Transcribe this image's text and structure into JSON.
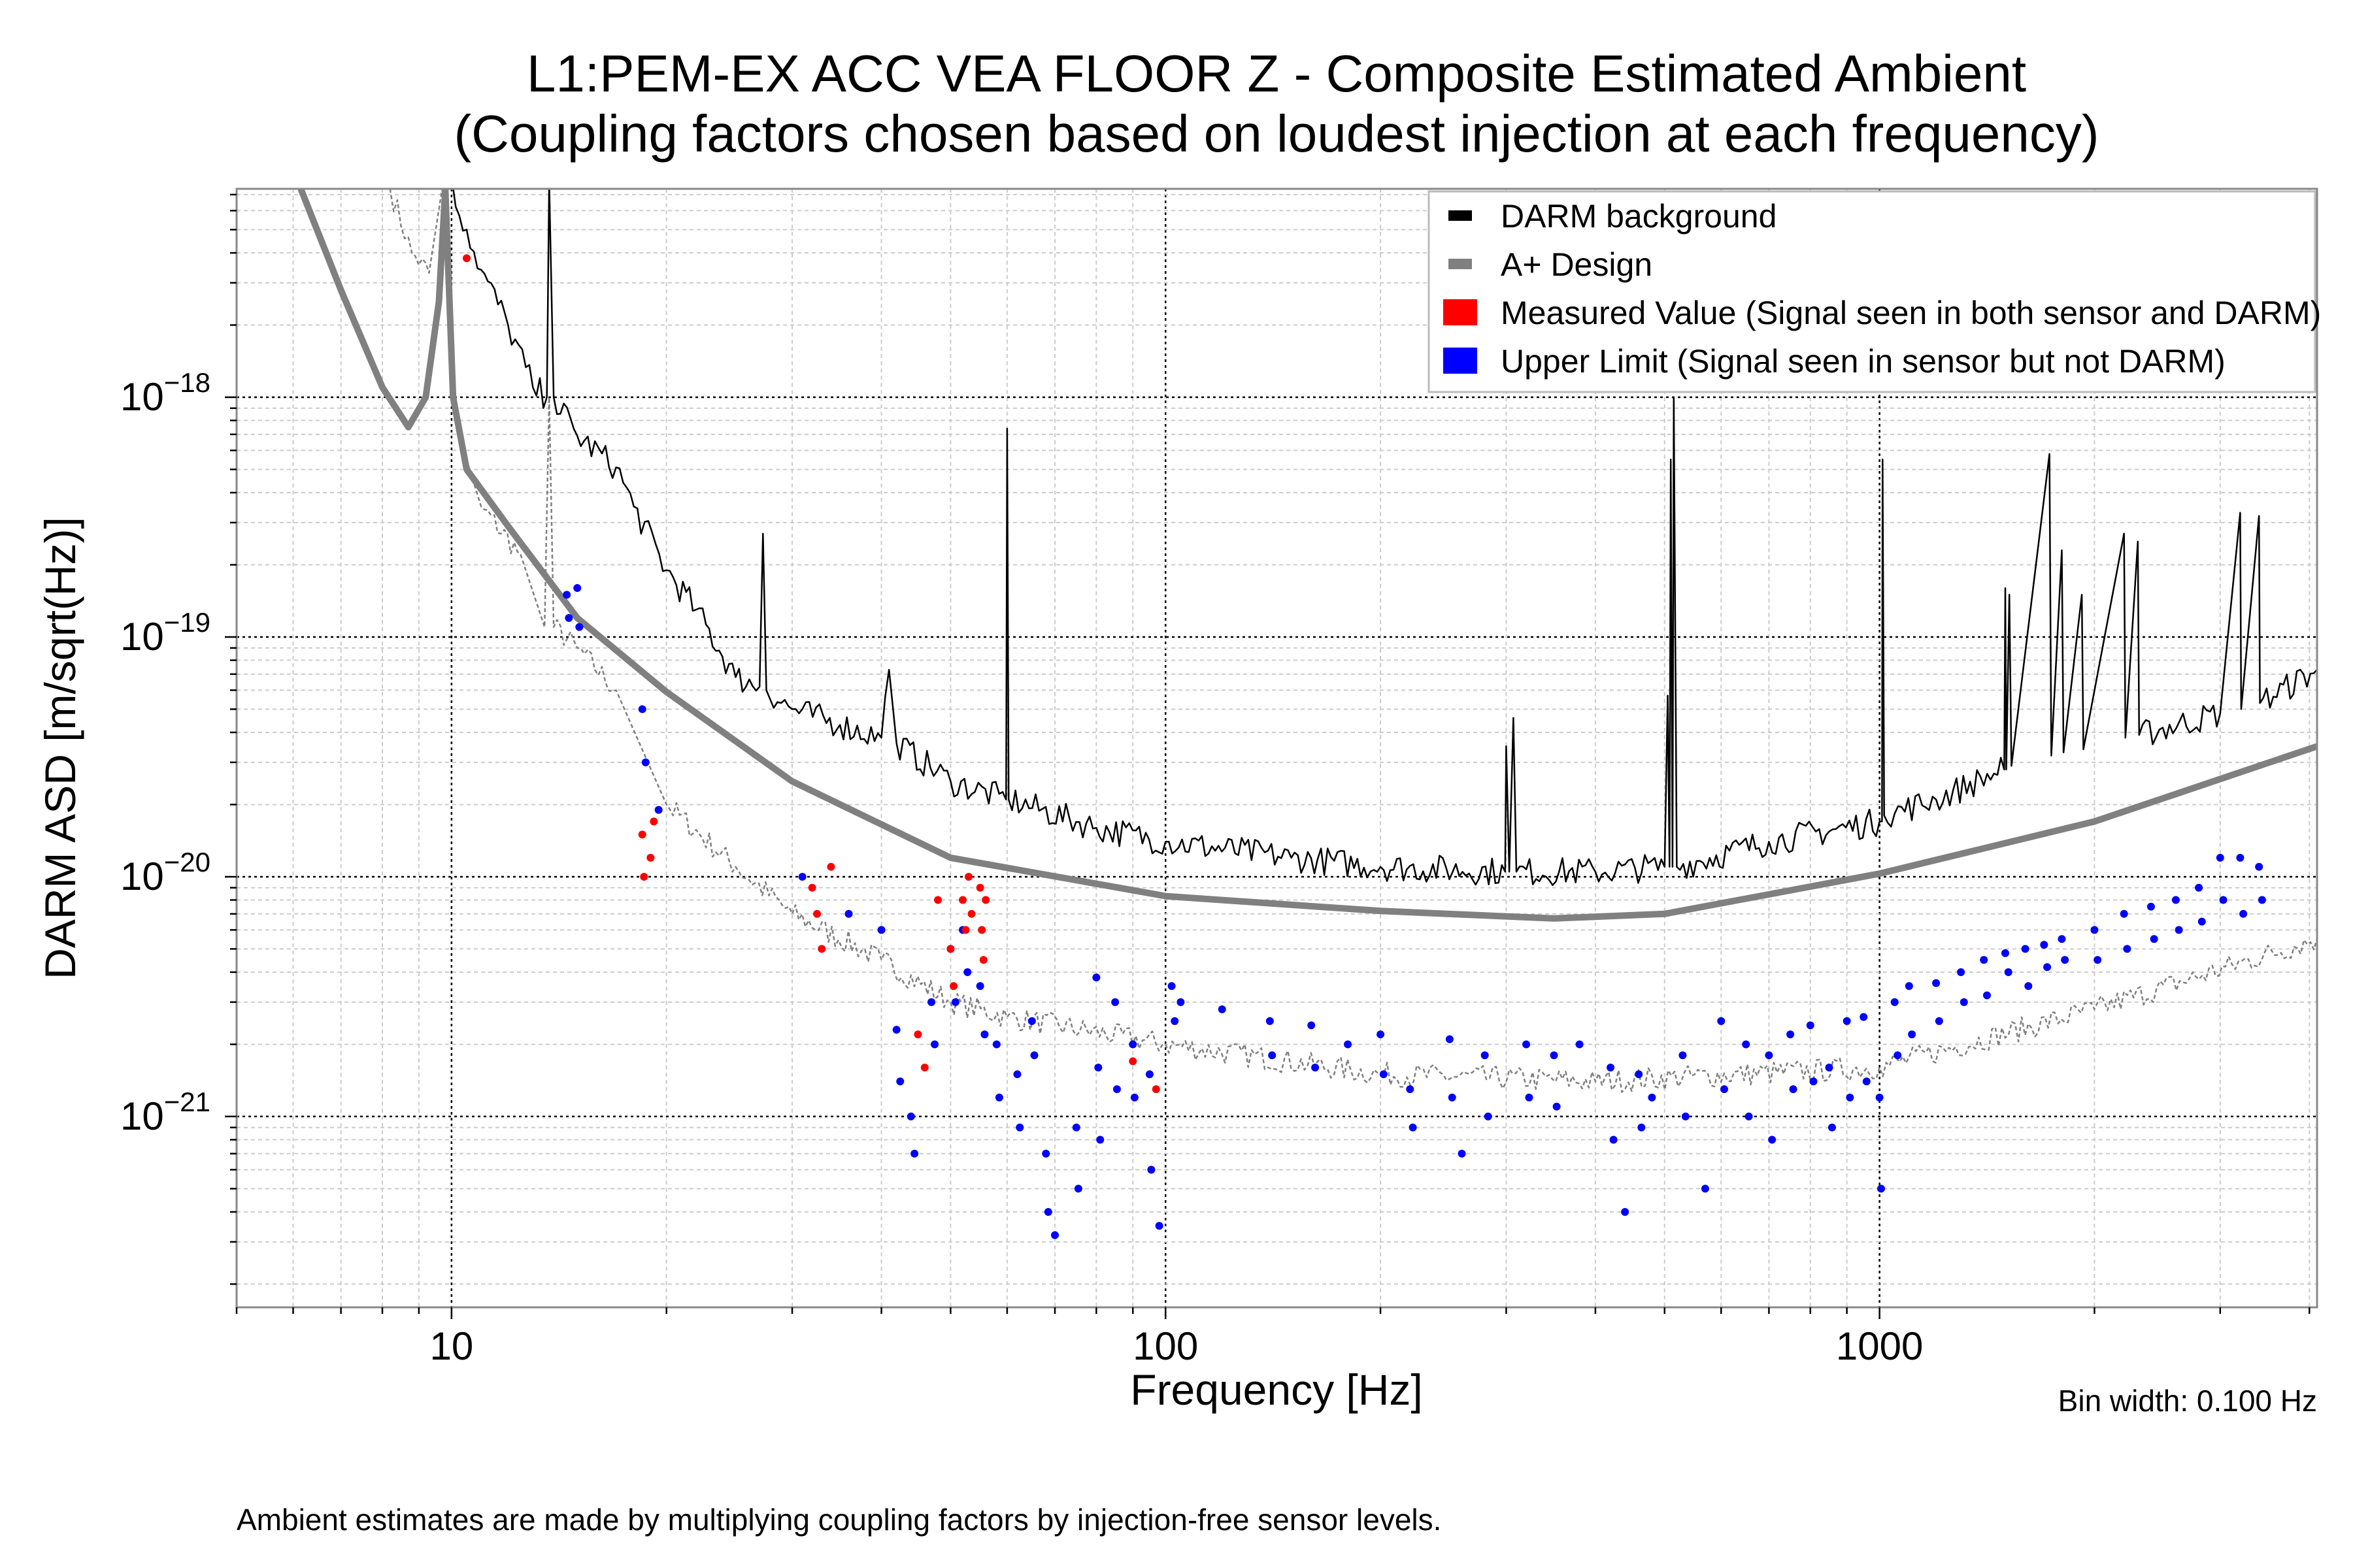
{
  "chart_data": {
    "type": "line",
    "title_line1": "L1:PEM-EX ACC VEA FLOOR Z - Composite Estimated Ambient",
    "title_line2": "(Coupling factors chosen based on loudest injection at each frequency)",
    "xlabel": "Frequency [Hz]",
    "ylabel": "DARM ASD [m/sqrt(Hz)]",
    "x_scale": "log",
    "y_scale": "log",
    "xlim": [
      5,
      4100
    ],
    "ylim": [
      1.6e-22,
      7.4e-18
    ],
    "x_ticks": [
      {
        "value": 10,
        "label": "10"
      },
      {
        "value": 100,
        "label": "100"
      },
      {
        "value": 1000,
        "label": "1000"
      }
    ],
    "y_ticks": [
      {
        "value": 1e-18,
        "base": "10",
        "exp": "−18"
      },
      {
        "value": 1e-19,
        "base": "10",
        "exp": "−19"
      },
      {
        "value": 1e-20,
        "base": "10",
        "exp": "−20"
      },
      {
        "value": 1e-21,
        "base": "10",
        "exp": "−21"
      }
    ],
    "grid": true,
    "legend_position": "top-right",
    "legend": [
      {
        "label": "DARM background",
        "color": "#000000"
      },
      {
        "label": "A+ Design",
        "color": "#808080"
      },
      {
        "label": "Measured Value (Signal seen in both sensor and DARM)",
        "color": "#ff0000"
      },
      {
        "label": "Upper Limit (Signal seen in sensor but not DARM)",
        "color": "#0000ff"
      }
    ],
    "bin_width_note": "Bin width: 0.100 Hz",
    "footnote": "Ambient estimates are made by multiplying coupling factors by injection-free sensor levels.",
    "series": [
      {
        "name": "DARM background",
        "color": "#000000",
        "style": "thin-line",
        "points": [
          [
            9.9,
            8e-18
          ],
          [
            10.5,
            5e-18
          ],
          [
            11,
            3.4e-18
          ],
          [
            12,
            2e-18
          ],
          [
            13,
            1.1e-18
          ],
          [
            13.6,
            1e-18
          ],
          [
            13.7,
            8e-18
          ],
          [
            13.9,
            1e-18
          ],
          [
            15,
            6.9e-19
          ],
          [
            17,
            5.1e-19
          ],
          [
            18,
            3.5e-19
          ],
          [
            20,
            1.9e-19
          ],
          [
            22,
            1.3e-19
          ],
          [
            25,
            6.8e-20
          ],
          [
            27,
            6.2e-20
          ],
          [
            27.3,
            2.7e-19
          ],
          [
            27.6,
            6e-20
          ],
          [
            30,
            5e-20
          ],
          [
            35,
            4.3e-20
          ],
          [
            40,
            3.8e-20
          ],
          [
            41,
            7.3e-20
          ],
          [
            42,
            3.6e-20
          ],
          [
            50,
            2.5e-20
          ],
          [
            59.8,
            2.1e-20
          ],
          [
            60,
            7.4e-19
          ],
          [
            60.3,
            2.1e-20
          ],
          [
            80,
            1.6e-20
          ],
          [
            100,
            1.4e-20
          ],
          [
            150,
            1.2e-20
          ],
          [
            200,
            1.1e-20
          ],
          [
            299,
            1.05e-20
          ],
          [
            300,
            3.5e-20
          ],
          [
            303,
            1.05e-20
          ],
          [
            307,
            4.6e-20
          ],
          [
            310,
            1.05e-20
          ],
          [
            400,
            1.05e-20
          ],
          [
            500,
            1.1e-20
          ],
          [
            505,
            5.7e-20
          ],
          [
            508,
            1.1e-20
          ],
          [
            510,
            5.5e-19
          ],
          [
            513,
            1.1e-20
          ],
          [
            515,
            1e-18
          ],
          [
            520,
            1.1e-20
          ],
          [
            700,
            1.4e-20
          ],
          [
            1000,
            1.7e-20
          ],
          [
            1008,
            1.7e-20
          ],
          [
            1010,
            5.5e-19
          ],
          [
            1015,
            1.8e-20
          ],
          [
            1200,
            2.1e-20
          ],
          [
            1495,
            2.8e-20
          ],
          [
            1500,
            1.6e-19
          ],
          [
            1505,
            2.8e-20
          ],
          [
            1520,
            1.5e-19
          ],
          [
            1530,
            2.9e-20
          ],
          [
            1730,
            5.8e-19
          ],
          [
            1740,
            3.2e-20
          ],
          [
            1800,
            2.3e-19
          ],
          [
            1810,
            3.3e-20
          ],
          [
            1920,
            1.5e-19
          ],
          [
            1930,
            3.4e-20
          ],
          [
            2200,
            2.7e-19
          ],
          [
            2210,
            3.8e-20
          ],
          [
            2300,
            2.5e-19
          ],
          [
            2310,
            3.9e-20
          ],
          [
            3000,
            4.8e-20
          ],
          [
            3200,
            3.3e-19
          ],
          [
            3210,
            5e-20
          ],
          [
            3400,
            3.2e-19
          ],
          [
            3410,
            5.3e-20
          ],
          [
            4100,
            7.3e-20
          ]
        ]
      },
      {
        "name": "A+ Design",
        "color": "#808080",
        "style": "thick-line",
        "points": [
          [
            6.15,
            7.4e-18
          ],
          [
            7,
            2.8e-18
          ],
          [
            8,
            1.1e-18
          ],
          [
            8.7,
            7.5e-19
          ],
          [
            9.2,
            1e-18
          ],
          [
            9.6,
            2.5e-18
          ],
          [
            9.8,
            7.4e-18
          ],
          [
            10.05,
            1e-18
          ],
          [
            10.5,
            5e-19
          ],
          [
            12,
            2.9e-19
          ],
          [
            15,
            1.2e-19
          ],
          [
            20,
            5.9e-20
          ],
          [
            30,
            2.5e-20
          ],
          [
            50,
            1.2e-20
          ],
          [
            100,
            8.3e-21
          ],
          [
            200,
            7.2e-21
          ],
          [
            350,
            6.7e-21
          ],
          [
            500,
            7e-21
          ],
          [
            1000,
            1.03e-20
          ],
          [
            2000,
            1.7e-20
          ],
          [
            4100,
            3.5e-20
          ]
        ]
      },
      {
        "color": "#808080",
        "style": "dashed-line",
        "points": [
          [
            8.2,
            7.4e-18
          ],
          [
            8.8,
            4e-18
          ],
          [
            9.3,
            3.3e-18
          ],
          [
            9.7,
            7.4e-18
          ],
          [
            10.1,
            8e-19
          ],
          [
            11,
            3.5e-19
          ],
          [
            12.5,
            2.2e-19
          ],
          [
            13.5,
            1.1e-19
          ],
          [
            13.7,
            1e-18
          ],
          [
            13.9,
            1.1e-19
          ],
          [
            15,
            9e-20
          ],
          [
            17,
            6e-20
          ],
          [
            20,
            2e-20
          ],
          [
            25,
            1.1e-20
          ],
          [
            30,
            7e-21
          ],
          [
            40,
            4.5e-21
          ],
          [
            50,
            3e-21
          ],
          [
            60,
            2.6e-21
          ],
          [
            100,
            2e-21
          ],
          [
            200,
            1.5e-21
          ],
          [
            400,
            1.4e-21
          ],
          [
            1000,
            1.6e-21
          ],
          [
            2000,
            2.8e-21
          ],
          [
            4100,
            5.5e-21
          ]
        ]
      }
    ],
    "measured_points": [
      [
        10.5,
        3.8e-18
      ],
      [
        18.5,
        1.5e-20
      ],
      [
        18.6,
        1e-20
      ],
      [
        19,
        1.2e-20
      ],
      [
        19.2,
        1.7e-20
      ],
      [
        32,
        9e-21
      ],
      [
        32.5,
        7e-21
      ],
      [
        33,
        5e-21
      ],
      [
        34,
        1.1e-20
      ],
      [
        45,
        2.2e-21
      ],
      [
        46,
        1.6e-21
      ],
      [
        48,
        8e-21
      ],
      [
        50,
        5e-21
      ],
      [
        50.5,
        3.5e-21
      ],
      [
        52,
        8e-21
      ],
      [
        52.5,
        6e-21
      ],
      [
        53,
        1e-20
      ],
      [
        53.5,
        7e-21
      ],
      [
        55,
        9e-21
      ],
      [
        55.3,
        6e-21
      ],
      [
        55.6,
        4.5e-21
      ],
      [
        56,
        8e-21
      ],
      [
        90,
        1.7e-21
      ],
      [
        97,
        1.3e-21
      ]
    ],
    "upper_limit_points": [
      [
        14.5,
        1.5e-19
      ],
      [
        14.6,
        1.2e-19
      ],
      [
        15,
        1.6e-19
      ],
      [
        15.1,
        1.1e-19
      ],
      [
        18.5,
        5e-20
      ],
      [
        18.7,
        3e-20
      ],
      [
        19.5,
        1.9e-20
      ],
      [
        31,
        1e-20
      ],
      [
        36,
        7e-21
      ],
      [
        40,
        6e-21
      ],
      [
        42,
        2.3e-21
      ],
      [
        42.5,
        1.4e-21
      ],
      [
        44,
        1e-21
      ],
      [
        44.5,
        7e-22
      ],
      [
        47,
        3e-21
      ],
      [
        47.5,
        2e-21
      ],
      [
        50,
        5e-21
      ],
      [
        50.8,
        3e-21
      ],
      [
        52,
        6e-21
      ],
      [
        52.8,
        4e-21
      ],
      [
        55,
        3.5e-21
      ],
      [
        55.8,
        2.2e-21
      ],
      [
        58,
        2e-21
      ],
      [
        58.5,
        1.2e-21
      ],
      [
        62,
        1.5e-21
      ],
      [
        62.5,
        9e-22
      ],
      [
        65,
        2.5e-21
      ],
      [
        65.5,
        1.8e-21
      ],
      [
        68,
        7e-22
      ],
      [
        68.5,
        4e-22
      ],
      [
        70,
        3.2e-22
      ],
      [
        75,
        9e-22
      ],
      [
        75.5,
        5e-22
      ],
      [
        80,
        3.8e-21
      ],
      [
        80.5,
        1.6e-21
      ],
      [
        81,
        8e-22
      ],
      [
        85,
        3e-21
      ],
      [
        85.5,
        1.3e-21
      ],
      [
        90,
        2e-21
      ],
      [
        90.5,
        1.2e-21
      ],
      [
        95,
        1.5e-21
      ],
      [
        95.5,
        6e-22
      ],
      [
        98,
        3.5e-22
      ],
      [
        102,
        3.5e-21
      ],
      [
        103,
        2.5e-21
      ],
      [
        105,
        3e-21
      ],
      [
        120,
        2.8e-21
      ],
      [
        140,
        2.5e-21
      ],
      [
        141,
        1.8e-21
      ],
      [
        160,
        2.4e-21
      ],
      [
        162,
        1.6e-21
      ],
      [
        180,
        2e-21
      ],
      [
        200,
        2.2e-21
      ],
      [
        202,
        1.5e-21
      ],
      [
        220,
        1.3e-21
      ],
      [
        222,
        9e-22
      ],
      [
        250,
        2.1e-21
      ],
      [
        252,
        1.2e-21
      ],
      [
        260,
        7e-22
      ],
      [
        280,
        1.8e-21
      ],
      [
        283,
        1e-21
      ],
      [
        320,
        2e-21
      ],
      [
        323,
        1.2e-21
      ],
      [
        350,
        1.8e-21
      ],
      [
        353,
        1.1e-21
      ],
      [
        380,
        2e-21
      ],
      [
        420,
        1.6e-21
      ],
      [
        424,
        8e-22
      ],
      [
        440,
        4e-22
      ],
      [
        460,
        1.5e-21
      ],
      [
        464,
        9e-22
      ],
      [
        480,
        1.2e-21
      ],
      [
        530,
        1.8e-21
      ],
      [
        535,
        1e-21
      ],
      [
        570,
        5e-22
      ],
      [
        600,
        2.5e-21
      ],
      [
        606,
        1.3e-21
      ],
      [
        650,
        2e-21
      ],
      [
        656,
        1e-21
      ],
      [
        700,
        1.8e-21
      ],
      [
        707,
        8e-22
      ],
      [
        750,
        2.2e-21
      ],
      [
        757,
        1.3e-21
      ],
      [
        800,
        2.4e-21
      ],
      [
        808,
        1.4e-21
      ],
      [
        850,
        1.6e-21
      ],
      [
        858,
        9e-22
      ],
      [
        900,
        2.5e-21
      ],
      [
        909,
        1.2e-21
      ],
      [
        950,
        2.6e-21
      ],
      [
        959,
        1.4e-21
      ],
      [
        1000,
        1.2e-21
      ],
      [
        1005,
        5e-22
      ],
      [
        1050,
        3e-21
      ],
      [
        1060,
        1.8e-21
      ],
      [
        1100,
        3.5e-21
      ],
      [
        1110,
        2.2e-21
      ],
      [
        1200,
        3.6e-21
      ],
      [
        1212,
        2.5e-21
      ],
      [
        1300,
        4e-21
      ],
      [
        1313,
        3e-21
      ],
      [
        1400,
        4.5e-21
      ],
      [
        1414,
        3.2e-21
      ],
      [
        1500,
        4.8e-21
      ],
      [
        1515,
        4e-21
      ],
      [
        1600,
        5e-21
      ],
      [
        1616,
        3.5e-21
      ],
      [
        1700,
        5.2e-21
      ],
      [
        1717,
        4.2e-21
      ],
      [
        1800,
        5.5e-21
      ],
      [
        1818,
        4.5e-21
      ],
      [
        2000,
        6e-21
      ],
      [
        2020,
        4.5e-21
      ],
      [
        2200,
        7e-21
      ],
      [
        2222,
        5e-21
      ],
      [
        2400,
        7.5e-21
      ],
      [
        2424,
        5.5e-21
      ],
      [
        2600,
        8e-21
      ],
      [
        2626,
        6e-21
      ],
      [
        2800,
        9e-21
      ],
      [
        2828,
        6.5e-21
      ],
      [
        3000,
        1.2e-20
      ],
      [
        3030,
        8e-21
      ],
      [
        3200,
        1.2e-20
      ],
      [
        3232,
        7e-21
      ],
      [
        3400,
        1.1e-20
      ],
      [
        3434,
        8e-21
      ]
    ]
  }
}
